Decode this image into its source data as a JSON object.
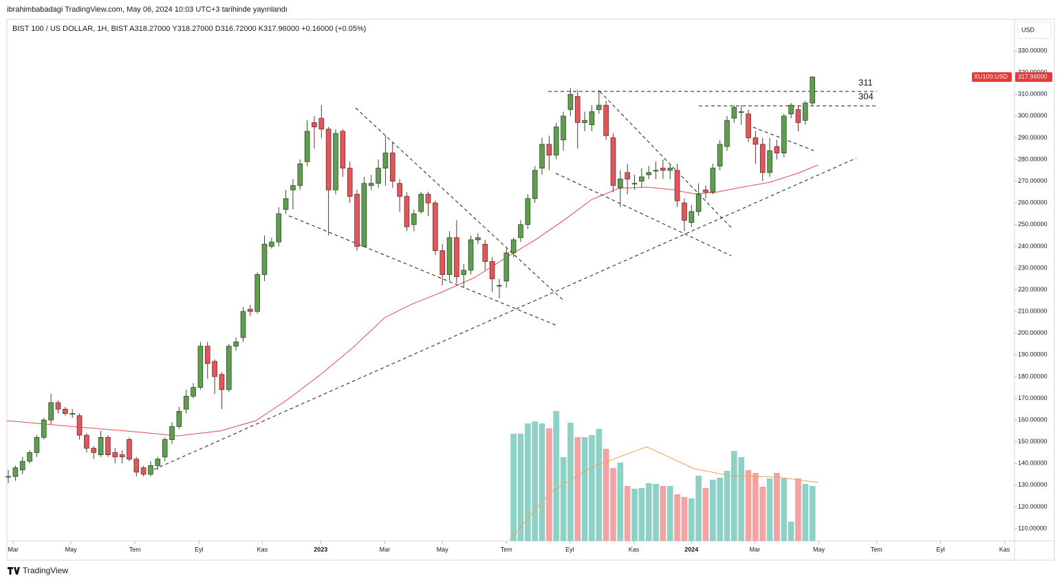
{
  "header": {
    "title": "ibrahimbabadagi TradingView.com, May 06, 2024 10:03 UTC+3 tarihinde yayınlandı",
    "legend": "BIST 100 / US DOLLAR, 1H, BIST   A318.27000   Y318.27000   D316.72000   K317.96000   +0.16000 (+0.05%)"
  },
  "footer": {
    "brand": "TradingView"
  },
  "chart_data": {
    "type": "candlestick",
    "currency": "USD",
    "symbol_label": "XU100.USD",
    "last_price": {
      "value": 317.96,
      "label": "317.96000"
    },
    "annotations": [
      "311",
      "304"
    ],
    "up_color": "#5f9e4f",
    "down_color": "#e0565b",
    "open": [
      134,
      134,
      137,
      141,
      145,
      152,
      160,
      168,
      165,
      163,
      162,
      153,
      147,
      144,
      152,
      145,
      144,
      151,
      142,
      138,
      135,
      139,
      143,
      151,
      157,
      165,
      171,
      175,
      194,
      187,
      181,
      174,
      194,
      198,
      211,
      210,
      227,
      240,
      242,
      257,
      266,
      268,
      279,
      297,
      299,
      294,
      266,
      293,
      276,
      264,
      240,
      268,
      269,
      276,
      283,
      269,
      263,
      250,
      256,
      264,
      260,
      238,
      227,
      244,
      227,
      229,
      243,
      241,
      233,
      222,
      224,
      237,
      244,
      250,
      262,
      276,
      287,
      282,
      289,
      303,
      309,
      297,
      296,
      303,
      305,
      290,
      267,
      274,
      269,
      270,
      273,
      275,
      276,
      275,
      275,
      260,
      251,
      256,
      266,
      265,
      277,
      286,
      299,
      302,
      301,
      290,
      287,
      274,
      286,
      283,
      301,
      303,
      298,
      306
    ],
    "high": [
      137,
      139,
      143,
      146,
      153,
      161,
      172,
      169,
      166,
      165,
      163,
      154,
      148,
      155,
      153,
      147,
      146,
      152,
      143,
      139,
      141,
      143,
      152,
      159,
      166,
      174,
      177,
      196,
      196,
      188,
      182,
      195,
      198,
      212,
      213,
      228,
      245,
      244,
      258,
      266,
      271,
      280,
      298,
      300,
      305,
      295,
      294,
      294,
      279,
      266,
      272,
      273,
      280,
      291,
      288,
      271,
      265,
      257,
      265,
      265,
      261,
      241,
      247,
      252,
      232,
      245,
      246,
      243,
      235,
      225,
      239,
      244,
      252,
      264,
      277,
      290,
      291,
      297,
      302,
      313,
      312,
      302,
      305,
      312,
      307,
      292,
      275,
      278,
      273,
      276,
      277,
      279,
      280,
      278,
      278,
      262,
      259,
      269,
      268,
      278,
      289,
      300,
      305,
      305,
      303,
      293,
      290,
      290,
      289,
      301,
      306,
      305,
      307,
      318.3
    ],
    "low": [
      131,
      132,
      135,
      140,
      143,
      151,
      158,
      163,
      162,
      161,
      151,
      145,
      142,
      143,
      143,
      140,
      140,
      141,
      134,
      134,
      134,
      137,
      141,
      149,
      156,
      163,
      170,
      174,
      179,
      172,
      165,
      173,
      192,
      196,
      208,
      209,
      224,
      239,
      240,
      255,
      257,
      266,
      277,
      285,
      290,
      245,
      264,
      272,
      260,
      238,
      240,
      266,
      267,
      268,
      267,
      256,
      247,
      247,
      255,
      254,
      236,
      222,
      224,
      223,
      221,
      227,
      241,
      229,
      219,
      216,
      221,
      235,
      242,
      248,
      260,
      273,
      275,
      280,
      284,
      300,
      285,
      293,
      293,
      301,
      289,
      265,
      258,
      264,
      266,
      267,
      271,
      271,
      271,
      271,
      258,
      247,
      249,
      254,
      262,
      264,
      275,
      284,
      297,
      296,
      288,
      278,
      270,
      272,
      280,
      281,
      299,
      293,
      296,
      305
    ],
    "close": [
      134,
      138,
      141,
      145,
      152,
      160,
      168,
      165,
      163,
      163,
      153,
      147,
      145,
      152,
      144,
      143,
      143,
      142,
      136,
      135,
      139,
      142,
      151,
      157,
      164,
      171,
      175,
      194,
      186,
      180,
      174,
      194,
      196,
      210,
      210,
      227,
      241,
      242,
      255,
      262,
      268,
      278,
      293,
      295,
      294,
      266,
      292,
      276,
      263,
      240,
      269,
      269,
      276,
      283,
      270,
      263,
      249,
      255,
      264,
      260,
      238,
      227,
      244,
      226,
      229,
      243,
      244,
      233,
      225,
      222,
      237,
      243,
      250,
      262,
      275,
      287,
      282,
      295,
      300,
      310,
      297,
      298,
      302,
      305,
      291,
      268,
      271,
      271,
      269,
      272,
      274,
      275,
      275,
      276,
      261,
      252,
      256,
      264,
      265,
      276,
      287,
      298,
      304,
      302,
      290,
      287,
      274,
      284,
      283,
      300,
      305,
      297,
      306,
      318
    ],
    "moving_average": {
      "color": "#e0474c",
      "x": [
        -0.2,
        9.0,
        17.8,
        23.8,
        29.8,
        34.8,
        39.4,
        43.9,
        48.3,
        52.9,
        56.8,
        60.7,
        65.5,
        69.9,
        74.2,
        78.1,
        82.0,
        85.8,
        89.7,
        93.5,
        96.4,
        99.3,
        103.2,
        107.0,
        110.9,
        113.8
      ],
      "values": [
        159.7,
        157,
        154.6,
        152.7,
        155,
        159.7,
        169.8,
        181,
        193,
        207.2,
        213.5,
        218.6,
        225.6,
        234.7,
        243.3,
        252.1,
        261.6,
        266.7,
        267.3,
        266,
        264.2,
        264.8,
        267.3,
        269.5,
        273.6,
        277.5
      ]
    },
    "volume": {
      "up_color": "#8ed1c6",
      "down_color": "#f4a3a3",
      "vlim": [
        0,
        200
      ],
      "values": [
        156,
        156,
        171,
        174,
        171,
        164,
        189,
        122,
        172,
        151,
        151,
        154,
        163,
        134,
        106,
        114,
        80,
        76,
        77,
        84,
        83,
        80,
        80,
        68,
        64,
        62,
        95,
        77,
        89,
        92,
        102,
        131,
        122,
        103,
        99,
        79,
        91,
        99,
        91,
        28,
        91,
        83,
        80
      ],
      "ma": {
        "color": "#f0a050",
        "x": [
          70.5,
          76.1,
          81.9,
          89.7,
          96.4,
          101.3,
          108,
          113.8
        ],
        "values": [
          2,
          70,
          107,
          137,
          105,
          95,
          93,
          85
        ]
      }
    },
    "xlim": [
      -0.2,
      141.4
    ],
    "xticks": [
      {
        "value": 0.7,
        "label": "Mar"
      },
      {
        "value": 8.8,
        "label": "May"
      },
      {
        "value": 17.8,
        "label": "Tem"
      },
      {
        "value": 26.8,
        "label": "Eyl"
      },
      {
        "value": 35.7,
        "label": "Kas"
      },
      {
        "value": 43.9,
        "label": "2023"
      },
      {
        "value": 52.9,
        "label": "Mar"
      },
      {
        "value": 61.0,
        "label": "May"
      },
      {
        "value": 70.0,
        "label": "Tem"
      },
      {
        "value": 78.9,
        "label": "Eyl"
      },
      {
        "value": 87.9,
        "label": "Kas"
      },
      {
        "value": 96.0,
        "label": "2024"
      },
      {
        "value": 104.9,
        "label": "Mar"
      },
      {
        "value": 113.9,
        "label": "May"
      },
      {
        "value": 122.0,
        "label": "Tem"
      },
      {
        "value": 131.0,
        "label": "Eyl"
      },
      {
        "value": 140.0,
        "label": "Kas"
      }
    ],
    "ylim": [
      104.3,
      344.6
    ],
    "yticks": [
      {
        "value": 110,
        "label": "110.00000"
      },
      {
        "value": 120,
        "label": "120.00000"
      },
      {
        "value": 130,
        "label": "130.00000"
      },
      {
        "value": 140,
        "label": "140.00000"
      },
      {
        "value": 150,
        "label": "150.00000"
      },
      {
        "value": 160,
        "label": "160.00000"
      },
      {
        "value": 170,
        "label": "170.00000"
      },
      {
        "value": 180,
        "label": "180.00000"
      },
      {
        "value": 190,
        "label": "190.00000"
      },
      {
        "value": 200,
        "label": "200.00000"
      },
      {
        "value": 210,
        "label": "210.00000"
      },
      {
        "value": 220,
        "label": "220.00000"
      },
      {
        "value": 230,
        "label": "230.00000"
      },
      {
        "value": 240,
        "label": "240.00000"
      },
      {
        "value": 250,
        "label": "250.00000"
      },
      {
        "value": 260,
        "label": "260.00000"
      },
      {
        "value": 270,
        "label": "270.00000"
      },
      {
        "value": 280,
        "label": "280.00000"
      },
      {
        "value": 290,
        "label": "290.00000"
      },
      {
        "value": 300,
        "label": "300.00000"
      },
      {
        "value": 310,
        "label": "310.00000"
      },
      {
        "value": 320,
        "label": "320.00000"
      },
      {
        "value": 330,
        "label": "330.00000"
      }
    ]
  }
}
